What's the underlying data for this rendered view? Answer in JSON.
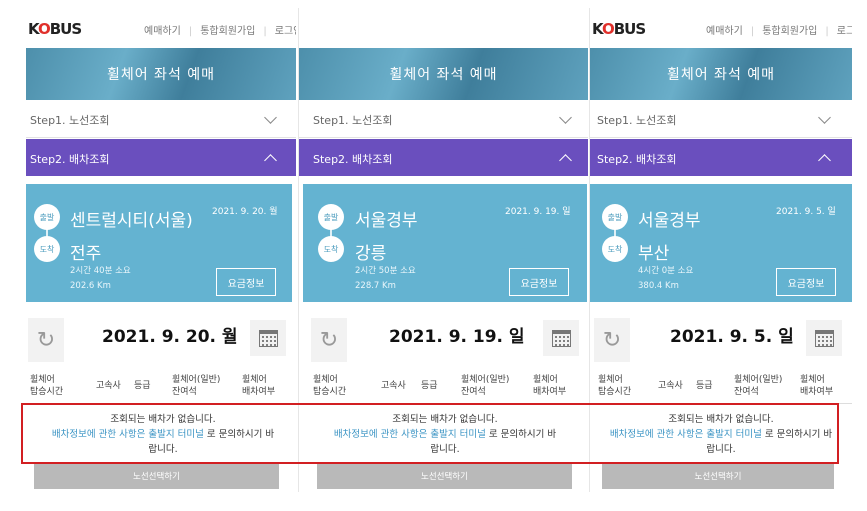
{
  "panels": [
    {
      "logo": "KOBUS",
      "nav": [
        "예매하기",
        "통합회원가입",
        "로그인"
      ],
      "banner_title": "휠체어 좌석 예매",
      "step1": "Step1. 노선조회",
      "step2": "Step2. 배차조회",
      "depart_badge": "출발",
      "arrive_badge": "도착",
      "departure": "센트럴시티(서울)",
      "arrival": "전주",
      "route_date": "2021. 9. 20. 월",
      "duration": "2시간 40분 소요",
      "distance": "202.6 Km",
      "fare_button": "요금정보",
      "selected_date": "2021. 9. 20. 월",
      "columns": [
        [
          "휠체어",
          "탑승시간"
        ],
        [
          "고속사"
        ],
        [
          "등급"
        ],
        [
          "휠체어(일반)",
          "잔여석"
        ],
        [
          "휠체어",
          "배차여부"
        ]
      ],
      "msg_line1": "조회되는 배차가 없습니다.",
      "msg_link": "배차정보에 관한 사항은 출발지 터미널",
      "msg_rest": " 로 문의하시기 바",
      "msg_line3": "랍니다.",
      "select_button": "노선선택하기"
    },
    {
      "logo": "",
      "nav": [],
      "banner_title": "휠체어 좌석 예매",
      "step1": "Step1. 노선조회",
      "step2": "Step2. 배차조회",
      "depart_badge": "출발",
      "arrive_badge": "도착",
      "departure": "서울경부",
      "arrival": "강릉",
      "route_date": "2021. 9. 19. 일",
      "duration": "2시간 50분 소요",
      "distance": "228.7 Km",
      "fare_button": "요금정보",
      "selected_date": "2021. 9. 19. 일",
      "columns": [
        [
          "휠체어",
          "탑승시간"
        ],
        [
          "고속사"
        ],
        [
          "등급"
        ],
        [
          "휠체어(일반)",
          "잔여석"
        ],
        [
          "휠체어",
          "배차여부"
        ]
      ],
      "msg_line1": "조회되는 배차가 없습니다.",
      "msg_link": "배차정보에 관한 사항은 출발지 터미널",
      "msg_rest": " 로 문의하시기 바",
      "msg_line3": "랍니다.",
      "select_button": "노선선택하기"
    },
    {
      "logo": "KOBUS",
      "nav": [
        "예매하기",
        "통합회원가입",
        "로그인"
      ],
      "banner_title": "휠체어 좌석 예매",
      "step1": "Step1. 노선조회",
      "step2": "Step2. 배차조회",
      "depart_badge": "출발",
      "arrive_badge": "도착",
      "departure": "서울경부",
      "arrival": "부산",
      "route_date": "2021. 9. 5. 일",
      "duration": "4시간 0분 소요",
      "distance": "380.4 Km",
      "fare_button": "요금정보",
      "selected_date": "2021. 9. 5. 일",
      "columns": [
        [
          "휠체어",
          "탑승시간"
        ],
        [
          "고속사"
        ],
        [
          "등급"
        ],
        [
          "휠체어(일반)",
          "잔여석"
        ],
        [
          "휠체어",
          "배차여부"
        ]
      ],
      "msg_line1": "조회되는 배차가 없습니다.",
      "msg_link": "배차정보에 관한 사항은 출발지 터미널",
      "msg_rest": " 로 문의하시기 바",
      "msg_line3": "랍니다.",
      "select_button": "노선선택하기"
    }
  ],
  "colors": {
    "step2_bg": "#6a4fbe",
    "route_bg": "#64b3d1",
    "highlight_border": "#d21f22",
    "link": "#3b94c4"
  }
}
